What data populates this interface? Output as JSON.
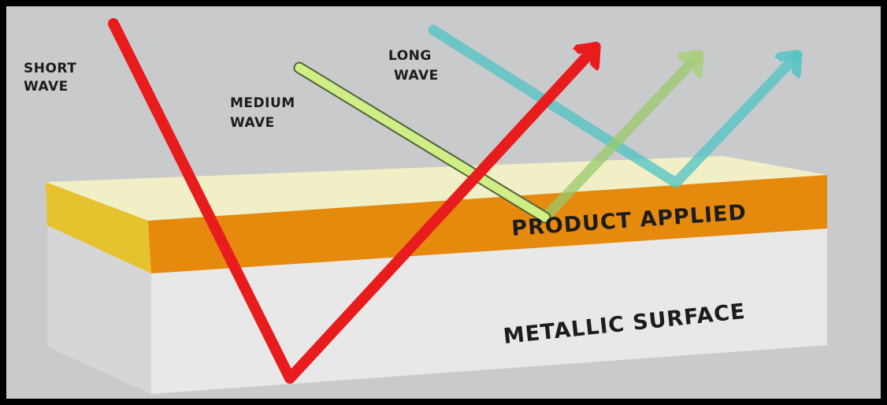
{
  "labels": {
    "short_wave_line1": "SHORT",
    "short_wave_line2": "WAVE",
    "medium_wave_line1": "MEDIUM",
    "medium_wave_line2": "WAVE",
    "long_wave_line1": "LONG",
    "long_wave_line2": "WAVE",
    "product_layer": "PRODUCT APPLIED",
    "metal_layer": "METALLIC SURFACE"
  },
  "colors": {
    "background": "#c9cacc",
    "short_wave": "#e81c1c",
    "medium_wave": "#c9ec84",
    "long_wave": "#55c4c4",
    "product_top": "#f1efc6",
    "product_front": "#e68a0e",
    "product_side": "#e6c22e",
    "metal_front": "#e8e8e8",
    "metal_side": "#d6d6d6"
  }
}
